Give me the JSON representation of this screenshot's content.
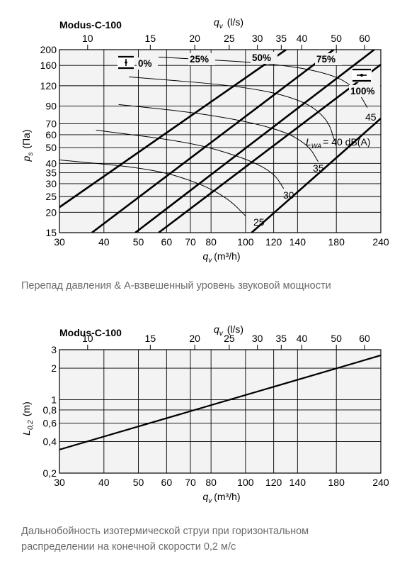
{
  "chart_data": [
    {
      "type": "line",
      "title": "Modus-C-100",
      "caption": "Перепад давления & A-взвешенный уровень звуковой мощности",
      "xscale": "log",
      "yscale": "log",
      "xlabel": {
        "symbol": "q",
        "subscript": "v",
        "unit": "(m³/h)"
      },
      "x2label": {
        "symbol": "q",
        "subscript": "v",
        "unit": "(l/s)"
      },
      "ylabel": {
        "symbol": "p",
        "subscript": "s",
        "unit": "(Па)"
      },
      "xlim": [
        30,
        240
      ],
      "ylim": [
        15,
        200
      ],
      "x_ticks": [
        "30",
        "40",
        "50",
        "60",
        "70",
        "80",
        "100",
        "120",
        "140",
        "180",
        "240"
      ],
      "x2_ticks": [
        "10",
        "15",
        "20",
        "25",
        "30",
        "35",
        "40",
        "50",
        "60"
      ],
      "y_ticks": [
        "15",
        "20",
        "25",
        "30",
        "35",
        "40",
        "50",
        "60",
        "70",
        "90",
        "120",
        "160",
        "200"
      ],
      "grid": true,
      "damper_lines": [
        {
          "name": "0%",
          "points": [
            [
              30,
              21.5
            ],
            [
              130,
              200
            ]
          ]
        },
        {
          "name": "25%",
          "points": [
            [
              37,
              15
            ],
            [
              177,
              200
            ]
          ]
        },
        {
          "name": "50%",
          "points": [
            [
              49,
              15
            ],
            [
              230,
              200
            ]
          ]
        },
        {
          "name": "75%",
          "points": [
            [
              57,
              15
            ],
            [
              240,
              162
            ]
          ]
        },
        {
          "name": "100%",
          "points": [
            [
              104,
              15
            ],
            [
              240,
              75.5
            ]
          ]
        }
      ],
      "sound_lines": [
        {
          "name": "25",
          "points": [
            [
              30,
              42
            ],
            [
              55,
              37
            ],
            [
              75,
              30
            ],
            [
              90,
              24
            ],
            [
              100,
              19
            ]
          ]
        },
        {
          "name": "30",
          "points": [
            [
              38,
              64
            ],
            [
              70,
              54
            ],
            [
              100,
              43
            ],
            [
              120,
              35
            ],
            [
              128,
              28
            ]
          ]
        },
        {
          "name": "35",
          "points": [
            [
              44,
              92
            ],
            [
              80,
              80
            ],
            [
              125,
              65
            ],
            [
              150,
              52
            ],
            [
              160,
              41
            ]
          ]
        },
        {
          "name": "40 dB(A)",
          "points": [
            [
              47,
              136
            ],
            [
              100,
              119
            ],
            [
              145,
              98
            ],
            [
              170,
              75
            ],
            [
              178,
              55
            ]
          ]
        },
        {
          "name": "45",
          "points": [
            [
              57,
              180
            ],
            [
              120,
              165
            ],
            [
              175,
              142
            ],
            [
              205,
              115
            ],
            [
              220,
              88
            ]
          ]
        }
      ],
      "damper_label_marks": [
        "0%",
        "25%",
        "50%",
        "75%",
        "100%"
      ],
      "sound_label_marks": [
        "25",
        "30",
        "35",
        "45"
      ],
      "lwa_label": {
        "symbol": "L",
        "subscript": "WA",
        "rest": "= 40 dB(A)"
      }
    },
    {
      "type": "line",
      "title": "Modus-C-100",
      "caption_lines": [
        "Дальнобойность изотермической струи при горизонтальном",
        "распределении на конечной скорости 0,2 м/с"
      ],
      "xscale": "log",
      "yscale": "log",
      "xlabel": {
        "symbol": "q",
        "subscript": "v",
        "unit": "(m³/h)"
      },
      "x2label": {
        "symbol": "q",
        "subscript": "v",
        "unit": "(l/s)"
      },
      "ylabel": {
        "symbol": "L",
        "subscript": "0,2",
        "unit": "(m)"
      },
      "xlim": [
        30,
        240
      ],
      "ylim": [
        0.2,
        3
      ],
      "x_ticks": [
        "30",
        "40",
        "50",
        "60",
        "70",
        "80",
        "100",
        "120",
        "140",
        "180",
        "240"
      ],
      "x2_ticks": [
        "10",
        "15",
        "20",
        "25",
        "30",
        "35",
        "40",
        "50",
        "60"
      ],
      "y_ticks": [
        "0,2",
        "0,4",
        "0,6",
        "0,8",
        "1",
        "2",
        "3"
      ],
      "grid": true,
      "series": [
        {
          "points": [
            [
              30,
              0.335
            ],
            [
              240,
              2.65
            ]
          ]
        }
      ]
    }
  ]
}
